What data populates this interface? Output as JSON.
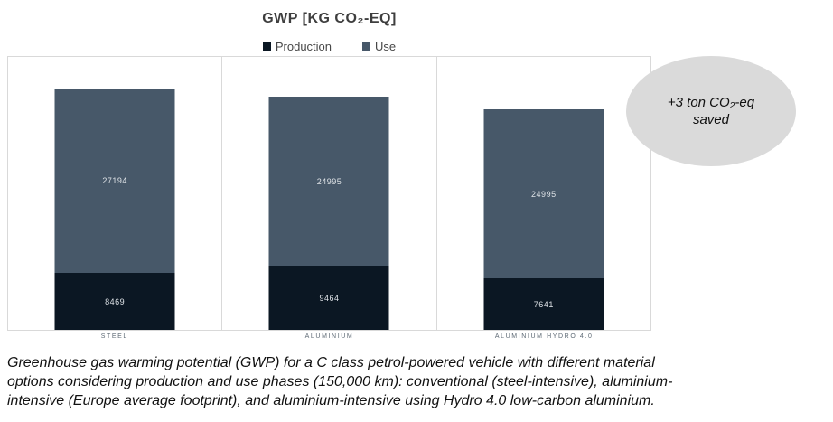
{
  "chart_data": {
    "type": "bar",
    "stacked": true,
    "title": "GWP [KG CO₂-EQ]",
    "legend_position": "top",
    "y_axis_visible": false,
    "grid": "outer border with vertical category separators",
    "border_color": "#d9d9d9",
    "value_label_color": "#dfe3e7",
    "categories": [
      "STEEL",
      "ALUMINIUM",
      "ALUMINIUM HYDRO 4.0"
    ],
    "series": [
      {
        "name": "Production",
        "color": "#0b1723",
        "values": [
          8469,
          9464,
          7641
        ]
      },
      {
        "name": "Use",
        "color": "#475869",
        "values": [
          27194,
          24995,
          24995
        ]
      }
    ]
  },
  "annotation_ellipse": {
    "line1": "+3 ton CO₂-eq",
    "line2": "saved",
    "fill": "#dadada",
    "text_color": "#111111"
  },
  "caption": "Greenhouse gas warming potential (GWP) for a C class petrol-powered vehicle with different material options considering production and use phases (150,000 km): conventional (steel-intensive), aluminium-intensive (Europe average footprint), and aluminium-intensive using Hydro 4.0 low-carbon aluminium."
}
